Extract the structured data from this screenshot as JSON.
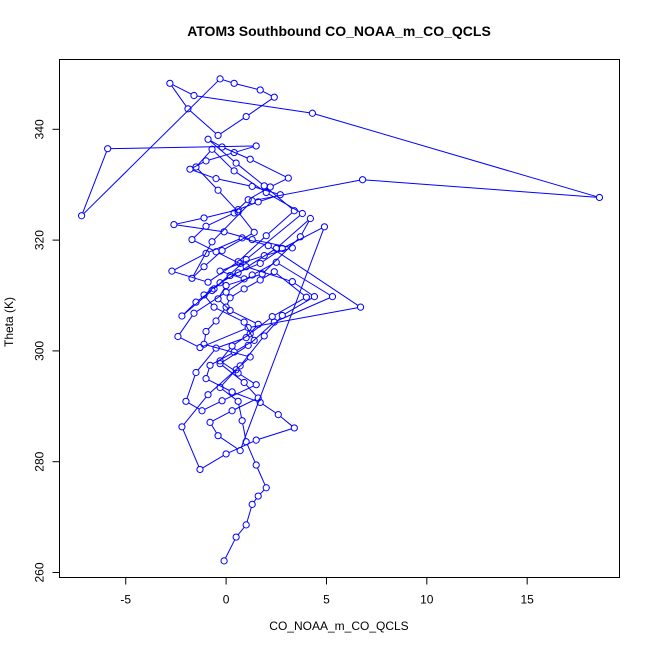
{
  "chart_data": {
    "type": "scatter",
    "title": "ATOM3 Southbound CO_NOAA_m_CO_QCLS",
    "xlabel": "CO_NOAA_m_CO_QCLS",
    "ylabel": "Theta (K)",
    "xlim": [
      -8.3,
      19.6
    ],
    "ylim": [
      259.1,
      352.6
    ],
    "xticks": [
      -5,
      0,
      5,
      10,
      15
    ],
    "yticks": [
      260,
      280,
      300,
      320,
      340
    ],
    "grid": false,
    "legend": "none",
    "point_style": "open-circle",
    "connected": true,
    "color": "#0000ff",
    "series": [
      {
        "x": [
          -0.1,
          0.5,
          1.0,
          1.3,
          1.6,
          2.0,
          1.5,
          1.0,
          0.8,
          0.6,
          -0.3,
          0.5,
          1.2,
          -1.1,
          -1.0,
          -0.5,
          0.0,
          0.2,
          0.9,
          1.7,
          2.4,
          4.0,
          2.3,
          1.2,
          0.3,
          -0.3,
          0.6,
          1.5,
          -0.2,
          -1.2,
          -2.0,
          -1.5,
          -0.5,
          1.0,
          1.6,
          0.2,
          -0.4,
          0.0,
          1.8,
          3.7,
          4.2,
          2.5,
          0.6,
          -0.3,
          -1.1,
          -0.6,
          0.9,
          1.4,
          0.4,
          -0.8,
          -1.0,
          0.3,
          1.7,
          2.6,
          3.4,
          1.5,
          0.0,
          -1.3,
          -2.2,
          -0.9,
          0.7,
          1.9,
          2.8,
          4.4,
          3.3,
          1.0,
          -0.5,
          -1.7,
          -1.0,
          0.4,
          1.1,
          2.2,
          3.1,
          1.2,
          -0.2,
          -0.9,
          0.5,
          1.9,
          3.4,
          2.0,
          0.6,
          -0.9,
          -2.7,
          -1.0,
          0.8,
          2.1,
          6.7,
          1.1,
          -1.3,
          -2.4,
          -1.6,
          0.0,
          1.3,
          2.5,
          5.3,
          2.4,
          1.1,
          -0.3,
          0.9,
          1.6,
          0.3,
          -0.8,
          -0.4,
          0.7,
          4.9,
          2.8,
          1.7,
          0.2,
          -0.6,
          -1.5,
          -2.2,
          -0.7,
          1.0,
          3.8,
          2.0,
          0.4,
          -0.7,
          -1.5,
          -0.4,
          0.6,
          1.4,
          -0.2,
          -1.1,
          -1.7,
          -0.7,
          1.3,
          6.8,
          18.6,
          4.3,
          -1.6,
          -2.8,
          -1.9,
          -0.4,
          1.0,
          2.4,
          1.7,
          0.4,
          -0.3,
          -7.2,
          -5.9,
          1.5,
          0.4,
          -1.0,
          -1.8,
          -0.5,
          1.3,
          2.7,
          1.6,
          0.6,
          -1.1,
          -2.6,
          -0.1,
          1.3,
          3.3,
          1.9,
          0.7,
          -0.3,
          0.9
        ],
        "y": [
          262.1,
          266.4,
          268.6,
          272.3,
          273.8,
          275.3,
          279.4,
          283.6,
          287.4,
          290.9,
          293.4,
          296.6,
          298.9,
          301.2,
          303.5,
          305.4,
          307.9,
          309.6,
          311.2,
          312.8,
          314.3,
          309.7,
          306.2,
          303.1,
          300.9,
          298.2,
          296.0,
          293.9,
          291.0,
          289.2,
          290.9,
          296.1,
          300.5,
          302.4,
          304.8,
          307.3,
          309.4,
          311.8,
          313.9,
          320.6,
          323.9,
          318.5,
          314.1,
          312.3,
          310.1,
          307.9,
          305.2,
          301.9,
          299.8,
          297.4,
          295.0,
          292.6,
          290.7,
          288.5,
          286.1,
          283.9,
          281.4,
          278.6,
          286.3,
          292.1,
          297.3,
          302.7,
          306.4,
          309.8,
          312.5,
          315.2,
          317.9,
          320.1,
          322.5,
          324.9,
          327.3,
          329.6,
          331.2,
          334.6,
          336.8,
          338.2,
          333.9,
          329.8,
          325.3,
          320.8,
          316.1,
          312.4,
          314.4,
          317.6,
          320.4,
          319.0,
          307.9,
          304.2,
          300.6,
          302.6,
          306.8,
          310.6,
          313.7,
          316.0,
          309.8,
          305.2,
          301.0,
          297.7,
          294.3,
          291.5,
          289.2,
          287.1,
          284.7,
          282.0,
          322.4,
          318.5,
          315.8,
          313.6,
          311.2,
          308.8,
          306.3,
          310.9,
          316.5,
          324.8,
          328.6,
          332.5,
          336.4,
          333.2,
          329.0,
          325.1,
          321.4,
          318.1,
          315.2,
          313.1,
          319.7,
          327.1,
          330.9,
          327.7,
          342.9,
          346.1,
          348.3,
          343.7,
          338.9,
          342.3,
          345.8,
          347.1,
          348.3,
          349.1,
          324.4,
          336.5,
          337.0,
          335.8,
          334.3,
          332.8,
          331.1,
          329.7,
          328.2,
          326.9,
          325.5,
          324.0,
          322.8,
          321.5,
          320.1,
          318.6,
          317.2,
          315.8,
          314.4,
          313.0
        ]
      }
    ]
  }
}
